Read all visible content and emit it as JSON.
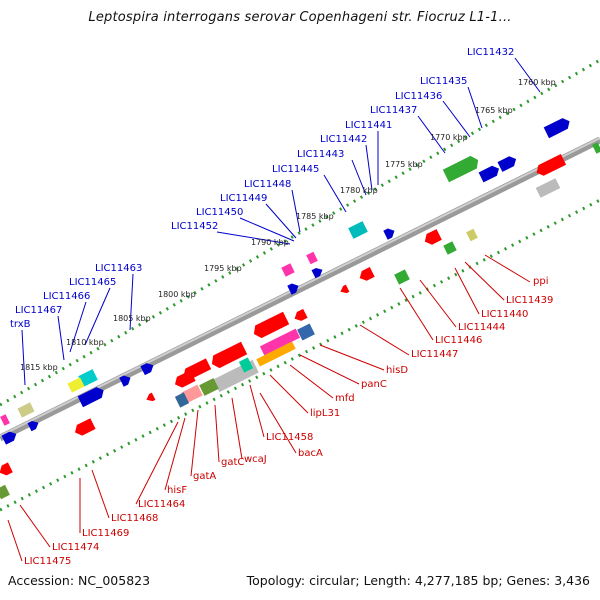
{
  "title": "Leptospira interrogans serovar Copenhageni str. Fiocruz L1-1...",
  "footer": {
    "accession": "Accession: NC_005823",
    "summary": "Topology: circular; Length: 4,277,185 bp; Genes: 3,436"
  },
  "kbp_labels": [
    "1760 kbp",
    "1765 kbp",
    "1770 kbp",
    "1775 kbp",
    "1780 kbp",
    "1785 kbp",
    "1790 kbp",
    "1795 kbp",
    "1800 kbp",
    "1805 kbp",
    "1810 kbp",
    "1815 kbp"
  ],
  "forward_genes": [
    "LIC11432",
    "LIC11435",
    "LIC11436",
    "LIC11437",
    "LIC11441",
    "LIC11442",
    "LIC11443",
    "LIC11445",
    "LIC11448",
    "LIC11449",
    "LIC11450",
    "LIC11452",
    "LIC11463",
    "LIC11465",
    "LIC11466",
    "LIC11467",
    "trxB"
  ],
  "reverse_genes": [
    "ppi",
    "LIC11439",
    "LIC11440",
    "LIC11444",
    "LIC11446",
    "LIC11447",
    "hisD",
    "panC",
    "mfd",
    "lipL31",
    "LIC11458",
    "bacA",
    "wcaJ",
    "gatC",
    "gatA",
    "hisF",
    "LIC11464",
    "LIC11468",
    "LIC11469",
    "LIC11474",
    "LIC11475"
  ],
  "colors": {
    "forward_label": "#0000cc",
    "reverse_label": "#cc0000",
    "tick": "#2e9a2e",
    "backbone": "#888888"
  }
}
